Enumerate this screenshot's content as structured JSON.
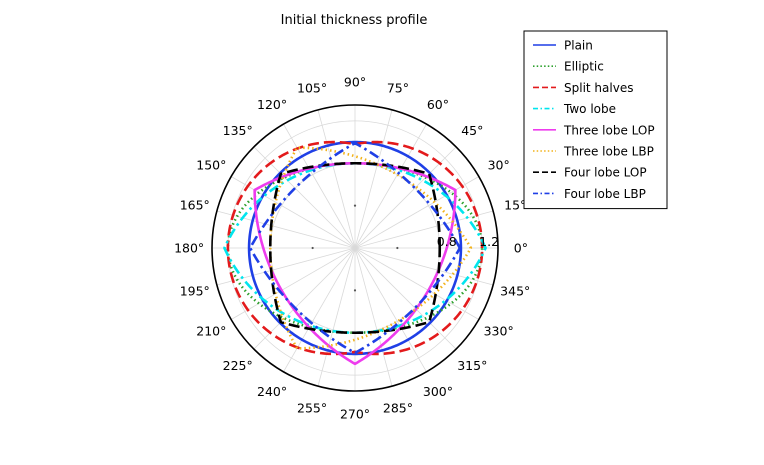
{
  "chart_data": {
    "type": "polar-line",
    "title": "Initial thickness profile",
    "angle_unit": "deg",
    "angle_ticks": [
      "0°",
      "15°",
      "30°",
      "45°",
      "60°",
      "75°",
      "90°",
      "105°",
      "120°",
      "135°",
      "150°",
      "165°",
      "180°",
      "195°",
      "210°",
      "225°",
      "240°",
      "255°",
      "270°",
      "285°",
      "300°",
      "315°",
      "330°",
      "345°"
    ],
    "radial_ticks": [
      {
        "value": 0.8,
        "label": "0.8"
      },
      {
        "value": 1.2,
        "label": "1.2"
      }
    ],
    "rlim": [
      0,
      1.35
    ],
    "grid": true,
    "legend_position": "top-right",
    "series": [
      {
        "name": "Plain",
        "color": "#1f3fe6",
        "dash": "solid",
        "params": {
          "kind": "circle",
          "r": 1.0
        }
      },
      {
        "name": "Elliptic",
        "color": "#2ca02c",
        "dash": "dot",
        "params": {
          "kind": "ellipse",
          "a": 1.2,
          "b": 0.8
        }
      },
      {
        "name": "Split halves",
        "color": "#e31a1c",
        "dash": "dash",
        "params": {
          "kind": "split",
          "r": 1.0,
          "offset": 0.2
        }
      },
      {
        "name": "Two lobe",
        "color": "#00e5ee",
        "dash": "dashdot",
        "params": {
          "kind": "lobe",
          "n": 2,
          "dmin": 0.8,
          "offset_deg": 0,
          "pn": 0.5
        }
      },
      {
        "name": "Three lobe LOP",
        "color": "#ee3cee",
        "dash": "solid",
        "params": {
          "kind": "lobe",
          "n": 3,
          "dmin": 0.8,
          "offset_deg": 30,
          "pn": 0.5
        }
      },
      {
        "name": "Three lobe LBP",
        "color": "#f2b21a",
        "dash": "dot",
        "params": {
          "kind": "lobe",
          "n": 3,
          "dmin": 0.8,
          "offset_deg": 0,
          "pn": 0.5
        }
      },
      {
        "name": "Four lobe LOP",
        "color": "#000000",
        "dash": "dash",
        "params": {
          "kind": "lobe",
          "n": 4,
          "dmin": 0.8,
          "offset_deg": 45,
          "pn": 0.5
        }
      },
      {
        "name": "Four lobe LBP",
        "color": "#1f3fe6",
        "dash": "dashdot",
        "params": {
          "kind": "lobe",
          "n": 4,
          "dmin": 0.8,
          "offset_deg": 0,
          "pn": 0.5
        }
      }
    ]
  }
}
